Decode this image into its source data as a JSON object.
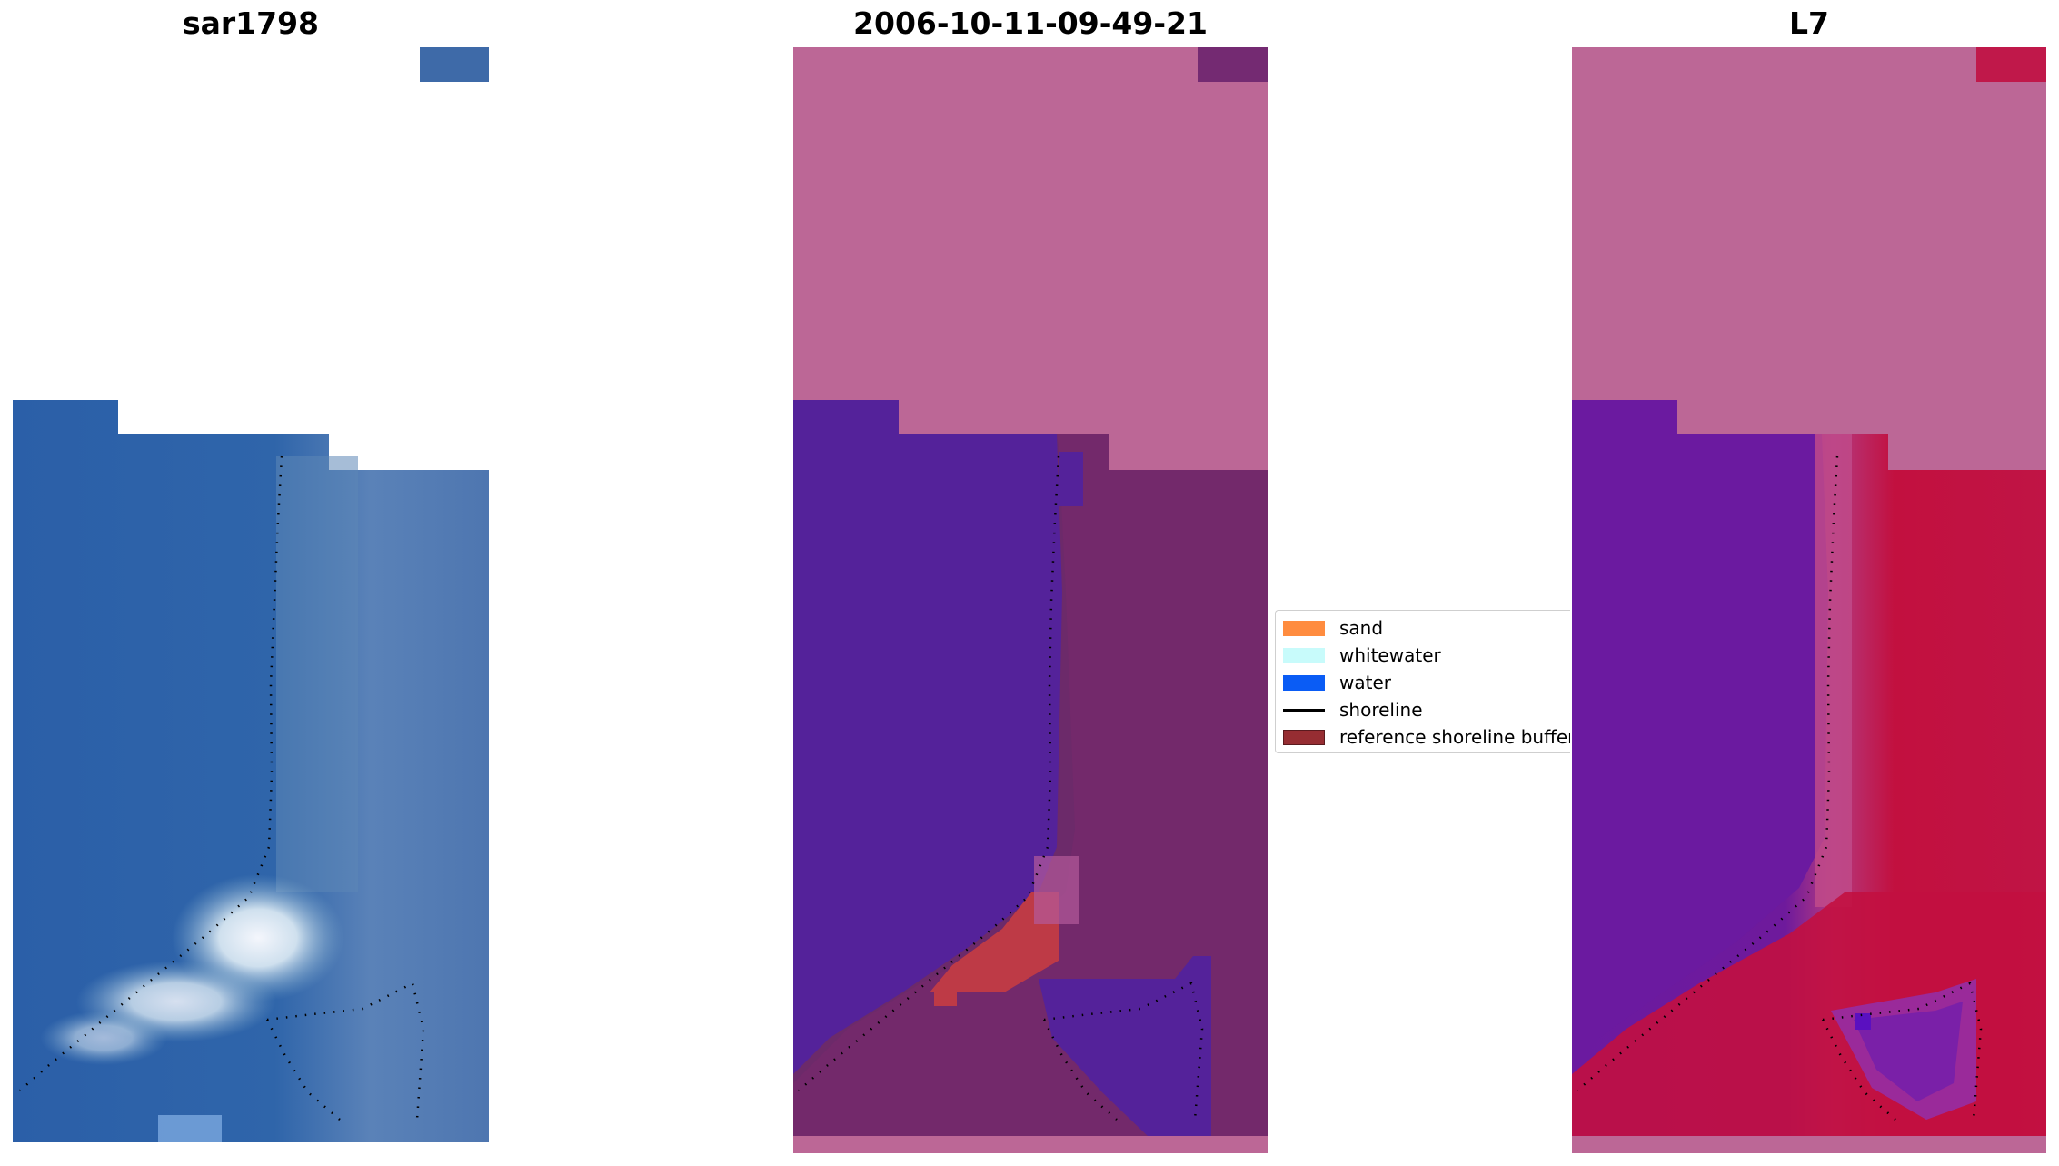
{
  "titles": {
    "panel1": "sar1798",
    "panel2": "2006-10-11-09-49-21",
    "panel3": "L7"
  },
  "legend": {
    "items": [
      {
        "label": "sand",
        "color": "#ff8c3f",
        "kind": "patch"
      },
      {
        "label": "whitewater",
        "color": "#c8fbfb",
        "kind": "patch"
      },
      {
        "label": "water",
        "color": "#0a5cf5",
        "kind": "patch"
      },
      {
        "label": "shoreline",
        "color": "#000000",
        "kind": "line"
      },
      {
        "label": "reference shoreline buffer",
        "color": "#962d32",
        "kind": "patch"
      }
    ]
  },
  "colors": {
    "rgb_water": "#2f62a8",
    "rgb_whitewater": "#e6eef8",
    "nodata_mask": "#bc6796",
    "class_water": "#54229a",
    "class_sand": "#be3a46",
    "buffer_overlay": "#6f2a6a",
    "mndwi_water": "#6a1a9e",
    "mndwi_land": "#c2103f"
  }
}
